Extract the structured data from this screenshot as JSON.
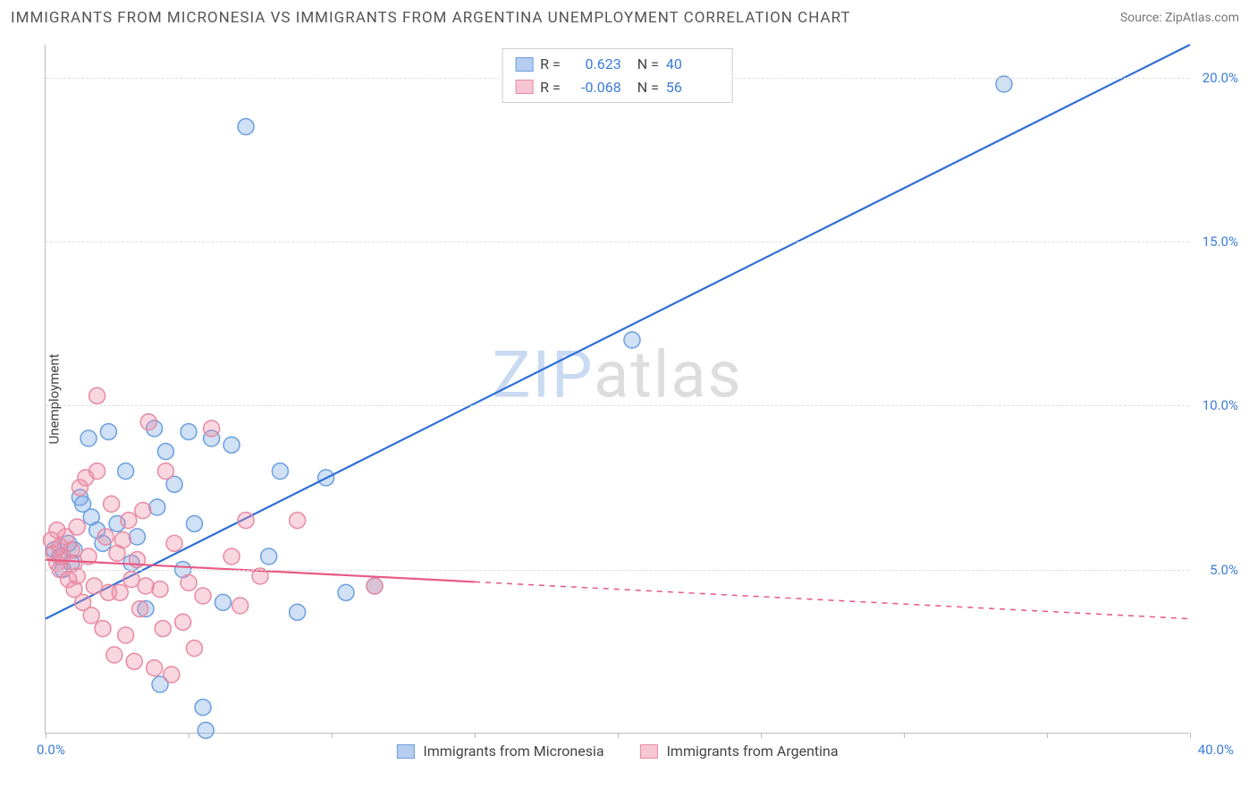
{
  "header": {
    "title": "IMMIGRANTS FROM MICRONESIA VS IMMIGRANTS FROM ARGENTINA UNEMPLOYMENT CORRELATION CHART",
    "source": "Source: ZipAtlas.com"
  },
  "chart": {
    "type": "scatter",
    "ylabel": "Unemployment",
    "xlim": [
      0,
      40
    ],
    "ylim": [
      0,
      21
    ],
    "x_ticks": [
      0,
      5,
      10,
      15,
      20,
      25,
      30,
      35,
      40
    ],
    "y_grid": [
      5,
      10,
      15,
      20
    ],
    "x_tick_label_min": "0.0%",
    "x_tick_label_max": "40.0%",
    "y_tick_labels": [
      "5.0%",
      "10.0%",
      "15.0%",
      "20.0%"
    ],
    "background_color": "#ffffff",
    "grid_color": "#dddddd",
    "axis_color": "#bbbbbb",
    "tick_label_color": "#3b7dd8",
    "label_fontsize": 15,
    "series": [
      {
        "name": "Immigrants from Micronesia",
        "marker_color_fill": "rgba(120,165,225,0.35)",
        "marker_color_stroke": "#6b9fe0",
        "marker_radius": 9,
        "line_color": "#2e6fd6",
        "line_width": 2.2,
        "swatch_fill": "#b7cdef",
        "swatch_border": "#6b9fe0",
        "r": "0.623",
        "n": "40",
        "regression": {
          "x0": 0,
          "y0": 3.5,
          "x1": 40,
          "y1": 21,
          "solid_to_x": 40
        },
        "points": [
          [
            0.3,
            5.6
          ],
          [
            0.5,
            5.4
          ],
          [
            0.6,
            5.0
          ],
          [
            0.8,
            5.8
          ],
          [
            0.9,
            5.2
          ],
          [
            1.0,
            5.6
          ],
          [
            1.2,
            7.2
          ],
          [
            1.3,
            7.0
          ],
          [
            1.5,
            9.0
          ],
          [
            1.6,
            6.6
          ],
          [
            1.8,
            6.2
          ],
          [
            2.0,
            5.8
          ],
          [
            2.2,
            9.2
          ],
          [
            2.5,
            6.4
          ],
          [
            2.8,
            8.0
          ],
          [
            3.0,
            5.2
          ],
          [
            3.2,
            6.0
          ],
          [
            3.5,
            3.8
          ],
          [
            3.8,
            9.3
          ],
          [
            4.0,
            1.5
          ],
          [
            4.2,
            8.6
          ],
          [
            4.5,
            7.6
          ],
          [
            5.0,
            9.2
          ],
          [
            5.2,
            6.4
          ],
          [
            5.5,
            0.8
          ],
          [
            5.8,
            9.0
          ],
          [
            6.2,
            4.0
          ],
          [
            6.5,
            8.8
          ],
          [
            7.0,
            18.5
          ],
          [
            7.8,
            5.4
          ],
          [
            8.2,
            8.0
          ],
          [
            8.8,
            3.7
          ],
          [
            9.8,
            7.8
          ],
          [
            10.5,
            4.3
          ],
          [
            20.5,
            12.0
          ],
          [
            33.5,
            19.8
          ],
          [
            5.6,
            0.1
          ],
          [
            4.8,
            5.0
          ],
          [
            3.9,
            6.9
          ],
          [
            11.5,
            4.5
          ]
        ]
      },
      {
        "name": "Immigrants from Argentina",
        "marker_color_fill": "rgba(238,140,165,0.35)",
        "marker_color_stroke": "#e88aa3",
        "marker_radius": 9,
        "line_color": "#e85a85",
        "line_width": 2.2,
        "swatch_fill": "#f6c6d4",
        "swatch_border": "#e88aa3",
        "r": "-0.068",
        "n": "56",
        "regression": {
          "x0": 0,
          "y0": 5.3,
          "x1": 40,
          "y1": 3.5,
          "solid_to_x": 15
        },
        "points": [
          [
            0.2,
            5.9
          ],
          [
            0.3,
            5.5
          ],
          [
            0.4,
            5.2
          ],
          [
            0.5,
            5.7
          ],
          [
            0.5,
            5.0
          ],
          [
            0.6,
            5.4
          ],
          [
            0.7,
            6.0
          ],
          [
            0.8,
            4.7
          ],
          [
            0.9,
            5.6
          ],
          [
            1.0,
            5.2
          ],
          [
            1.0,
            4.4
          ],
          [
            1.1,
            6.3
          ],
          [
            1.2,
            7.5
          ],
          [
            1.3,
            4.0
          ],
          [
            1.4,
            7.8
          ],
          [
            1.5,
            5.4
          ],
          [
            1.6,
            3.6
          ],
          [
            1.7,
            4.5
          ],
          [
            1.8,
            8.0
          ],
          [
            1.8,
            10.3
          ],
          [
            2.0,
            3.2
          ],
          [
            2.1,
            6.0
          ],
          [
            2.2,
            4.3
          ],
          [
            2.3,
            7.0
          ],
          [
            2.4,
            2.4
          ],
          [
            2.5,
            5.5
          ],
          [
            2.6,
            4.3
          ],
          [
            2.8,
            3.0
          ],
          [
            2.9,
            6.5
          ],
          [
            3.0,
            4.7
          ],
          [
            3.1,
            2.2
          ],
          [
            3.2,
            5.3
          ],
          [
            3.3,
            3.8
          ],
          [
            3.5,
            4.5
          ],
          [
            3.6,
            9.5
          ],
          [
            3.8,
            2.0
          ],
          [
            4.0,
            4.4
          ],
          [
            4.2,
            8.0
          ],
          [
            4.4,
            1.8
          ],
          [
            4.5,
            5.8
          ],
          [
            4.8,
            3.4
          ],
          [
            5.0,
            4.6
          ],
          [
            5.2,
            2.6
          ],
          [
            5.5,
            4.2
          ],
          [
            5.8,
            9.3
          ],
          [
            6.5,
            5.4
          ],
          [
            6.8,
            3.9
          ],
          [
            7.0,
            6.5
          ],
          [
            7.5,
            4.8
          ],
          [
            8.8,
            6.5
          ],
          [
            11.5,
            4.5
          ],
          [
            0.4,
            6.2
          ],
          [
            1.1,
            4.8
          ],
          [
            2.7,
            5.9
          ],
          [
            3.4,
            6.8
          ],
          [
            4.1,
            3.2
          ]
        ]
      }
    ],
    "watermark": {
      "part1": "ZIP",
      "part2": "atlas"
    }
  },
  "legend_top_labels": {
    "r": "R =",
    "n": "N ="
  }
}
